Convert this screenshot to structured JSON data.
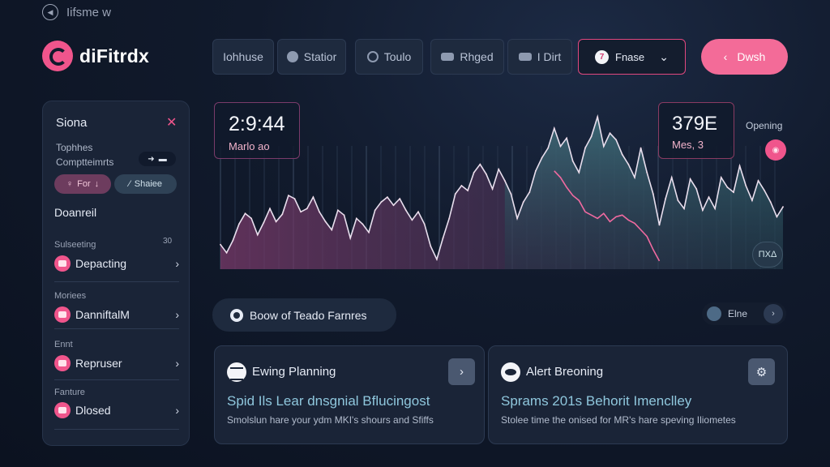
{
  "window": {
    "title": "Iifsme w"
  },
  "brand": {
    "name": "diFitrdx"
  },
  "nav": {
    "items": [
      {
        "label": "Iohhuse",
        "icon": ""
      },
      {
        "label": "Statior",
        "icon": "settings-icon"
      },
      {
        "label": "Toulo",
        "icon": "ring-icon"
      },
      {
        "label": "Rhged",
        "icon": "layers-icon"
      },
      {
        "label": "I Dirt",
        "icon": "display-icon"
      }
    ],
    "select": {
      "value": "Fnase",
      "icon_text": "7"
    },
    "primary_label": "Dwsh",
    "primary_icon": "‹"
  },
  "sidebar": {
    "title": "Siona",
    "subtitle_lines": [
      "Tophhes",
      "Comptteimrts"
    ],
    "chips": [
      {
        "label": "For",
        "prefix": "♀",
        "suffix": "↓"
      },
      {
        "label": "Shaiee",
        "prefix": "⁄"
      }
    ],
    "section": "Doanreil",
    "group_count": "30",
    "groups": [
      {
        "label": "Sulseeting",
        "item": "Depacting"
      },
      {
        "label": "Moriees",
        "item": "DanniftalM"
      },
      {
        "label": "Ennt",
        "item": "Repruser"
      },
      {
        "label": "Fanture",
        "item": "Dlosed"
      }
    ]
  },
  "chart": {
    "stat_left": {
      "value": "2:9:44",
      "label": "Marlo ao"
    },
    "stat_right": {
      "value": "379Ε",
      "label": "Mes, 3"
    },
    "side_label": "Opening",
    "mini_badge": "ΠΧΔ",
    "colors": {
      "pink": "#f06aa0",
      "teal": "#9ad7e0"
    }
  },
  "chart_data": {
    "type": "area",
    "title": "",
    "xlabel": "",
    "ylabel": "",
    "series": [
      {
        "values": [
          30,
          20,
          35,
          55,
          68,
          62,
          42,
          57,
          74,
          58,
          67,
          90,
          86,
          70,
          74,
          88,
          70,
          58,
          48,
          72,
          66,
          38,
          62,
          55,
          45,
          72,
          82,
          88,
          78,
          86,
          72,
          60,
          70,
          55,
          28,
          12,
          38,
          62,
          92,
          102,
          96,
          118,
          128,
          116,
          98,
          122,
          108,
          92,
          62,
          82,
          94,
          120,
          136,
          148,
          172,
          150,
          160,
          132,
          118,
          148,
          162,
          186,
          150,
          166,
          158,
          140,
          128,
          112,
          148,
          118,
          92,
          54,
          86,
          112,
          84,
          74,
          110,
          98,
          72,
          88,
          74,
          112,
          100,
          94,
          126,
          102,
          84,
          108,
          96,
          82,
          64,
          76
        ]
      },
      {
        "values": [
          null,
          null,
          null,
          null,
          null,
          null,
          null,
          null,
          null,
          null,
          null,
          null,
          null,
          null,
          null,
          null,
          null,
          null,
          null,
          null,
          null,
          null,
          null,
          null,
          null,
          null,
          null,
          null,
          null,
          null,
          null,
          null,
          null,
          null,
          null,
          null,
          null,
          null,
          null,
          null,
          null,
          null,
          null,
          null,
          null,
          null,
          null,
          null,
          null,
          null,
          null,
          null,
          null,
          null,
          120,
          112,
          100,
          90,
          84,
          70,
          66,
          62,
          68,
          58,
          64,
          66,
          60,
          56,
          48,
          40,
          24,
          10,
          null,
          null,
          null,
          null,
          null,
          null,
          null,
          null,
          null,
          null,
          null,
          null,
          null,
          null,
          null,
          null,
          null,
          null,
          null,
          null
        ]
      }
    ]
  },
  "section": {
    "label": "Boow of Teado Farnres"
  },
  "filter": {
    "label": "Elne",
    "next": "›"
  },
  "cards": [
    {
      "header": "Ewing Planning",
      "title": "Spid Ils Lear dnsgnial Bflucingost",
      "description": "Smolslun hare your ydm MKI's shours and Sfiffs",
      "action_icon": "›"
    },
    {
      "header": "Alert Breoning",
      "title": "Sprams 201s Behorit Imenclley",
      "description": "Stolee time the onised for MR's hare speving Iliometes",
      "action_icon": "⚙"
    }
  ]
}
